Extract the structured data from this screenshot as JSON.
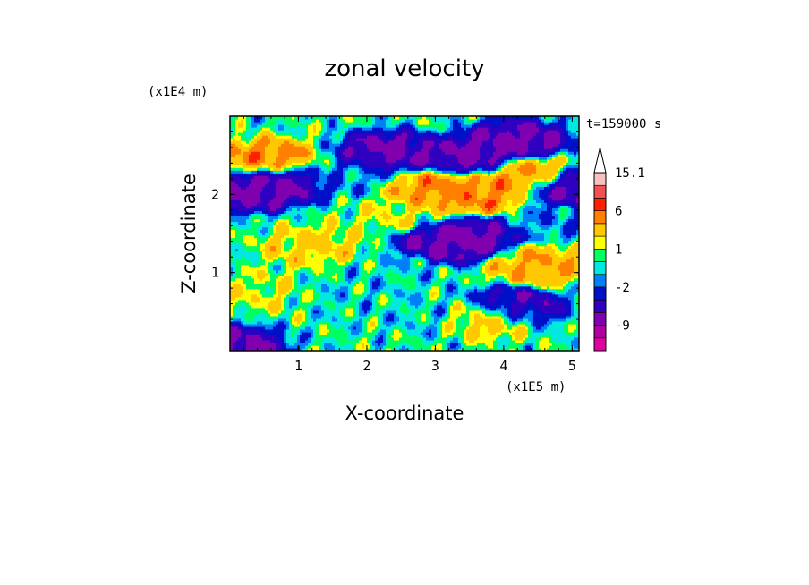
{
  "chart_data": {
    "type": "heatmap",
    "title": "zonal velocity",
    "xlabel": "X-coordinate",
    "ylabel": "Z-coordinate",
    "x_scale_label": "(x1E5 m)",
    "y_scale_label": "(x1E4 m)",
    "time_label": "t=159000 s",
    "xlim": [
      0.0,
      5.1
    ],
    "ylim": [
      0.0,
      3.0
    ],
    "x_ticks": [
      1,
      2,
      3,
      4,
      5
    ],
    "x_tick_labels": [
      "1",
      "2",
      "3",
      "4",
      "5"
    ],
    "y_ticks": [
      1,
      2
    ],
    "y_tick_labels": [
      "1",
      "2"
    ],
    "colorbar": {
      "bounds": [
        -15.1,
        -12,
        -9,
        -6,
        -4,
        -2,
        -1,
        0,
        1,
        2,
        4,
        6,
        9,
        12,
        15.1
      ],
      "colors": [
        "#e000a0",
        "#b000a0",
        "#8000b0",
        "#3000c0",
        "#0010c8",
        "#0080f8",
        "#00e8e0",
        "#00ff60",
        "#ffff00",
        "#ffc800",
        "#ff8000",
        "#ff2000",
        "#f05050",
        "#f8c0c0"
      ],
      "extend": "max",
      "tick_values": [
        15.1,
        6,
        1,
        -2,
        -9
      ],
      "tick_labels": [
        "15.1",
        "6",
        "1",
        "-2",
        "-9"
      ]
    },
    "field_features": [
      {
        "x": 0.55,
        "z": 2.45,
        "value": 5
      },
      {
        "x": 0.25,
        "z": 2.05,
        "value": -7
      },
      {
        "x": 0.7,
        "z": 2.15,
        "value": -7
      },
      {
        "x": 2.3,
        "z": 2.55,
        "value": -7
      },
      {
        "x": 3.55,
        "z": 2.5,
        "value": -7
      },
      {
        "x": 4.2,
        "z": 2.7,
        "value": -7
      },
      {
        "x": 5.0,
        "z": 2.1,
        "value": -7
      },
      {
        "x": 3.0,
        "z": 2.05,
        "value": 5
      },
      {
        "x": 3.6,
        "z": 2.0,
        "value": 5
      },
      {
        "x": 4.35,
        "z": 2.25,
        "value": 5
      },
      {
        "x": 4.5,
        "z": 1.1,
        "value": 4
      },
      {
        "x": 3.2,
        "z": 1.4,
        "value": -7
      },
      {
        "x": 3.45,
        "z": 1.45,
        "value": -7
      },
      {
        "x": 4.1,
        "z": 0.55,
        "value": -7
      },
      {
        "x": 3.85,
        "z": 0.45,
        "value": 4
      },
      {
        "x": 2.4,
        "z": 1.0,
        "value": -0.5
      },
      {
        "x": 1.6,
        "z": 0.7,
        "value": -0.5
      },
      {
        "x": 0.5,
        "z": 0.75,
        "value": 1.5
      },
      {
        "x": 2.8,
        "z": 0.45,
        "value": -0.5
      },
      {
        "x": 1.2,
        "z": 1.35,
        "value": 2.5
      },
      {
        "x": 2.5,
        "z": 1.75,
        "value": 1.5
      },
      {
        "x": 4.75,
        "z": 1.65,
        "value": -1.5
      },
      {
        "x": 0.05,
        "z": 0.05,
        "value": -7
      },
      {
        "x": 1.7,
        "z": 2.25,
        "value": -1.5
      }
    ]
  }
}
